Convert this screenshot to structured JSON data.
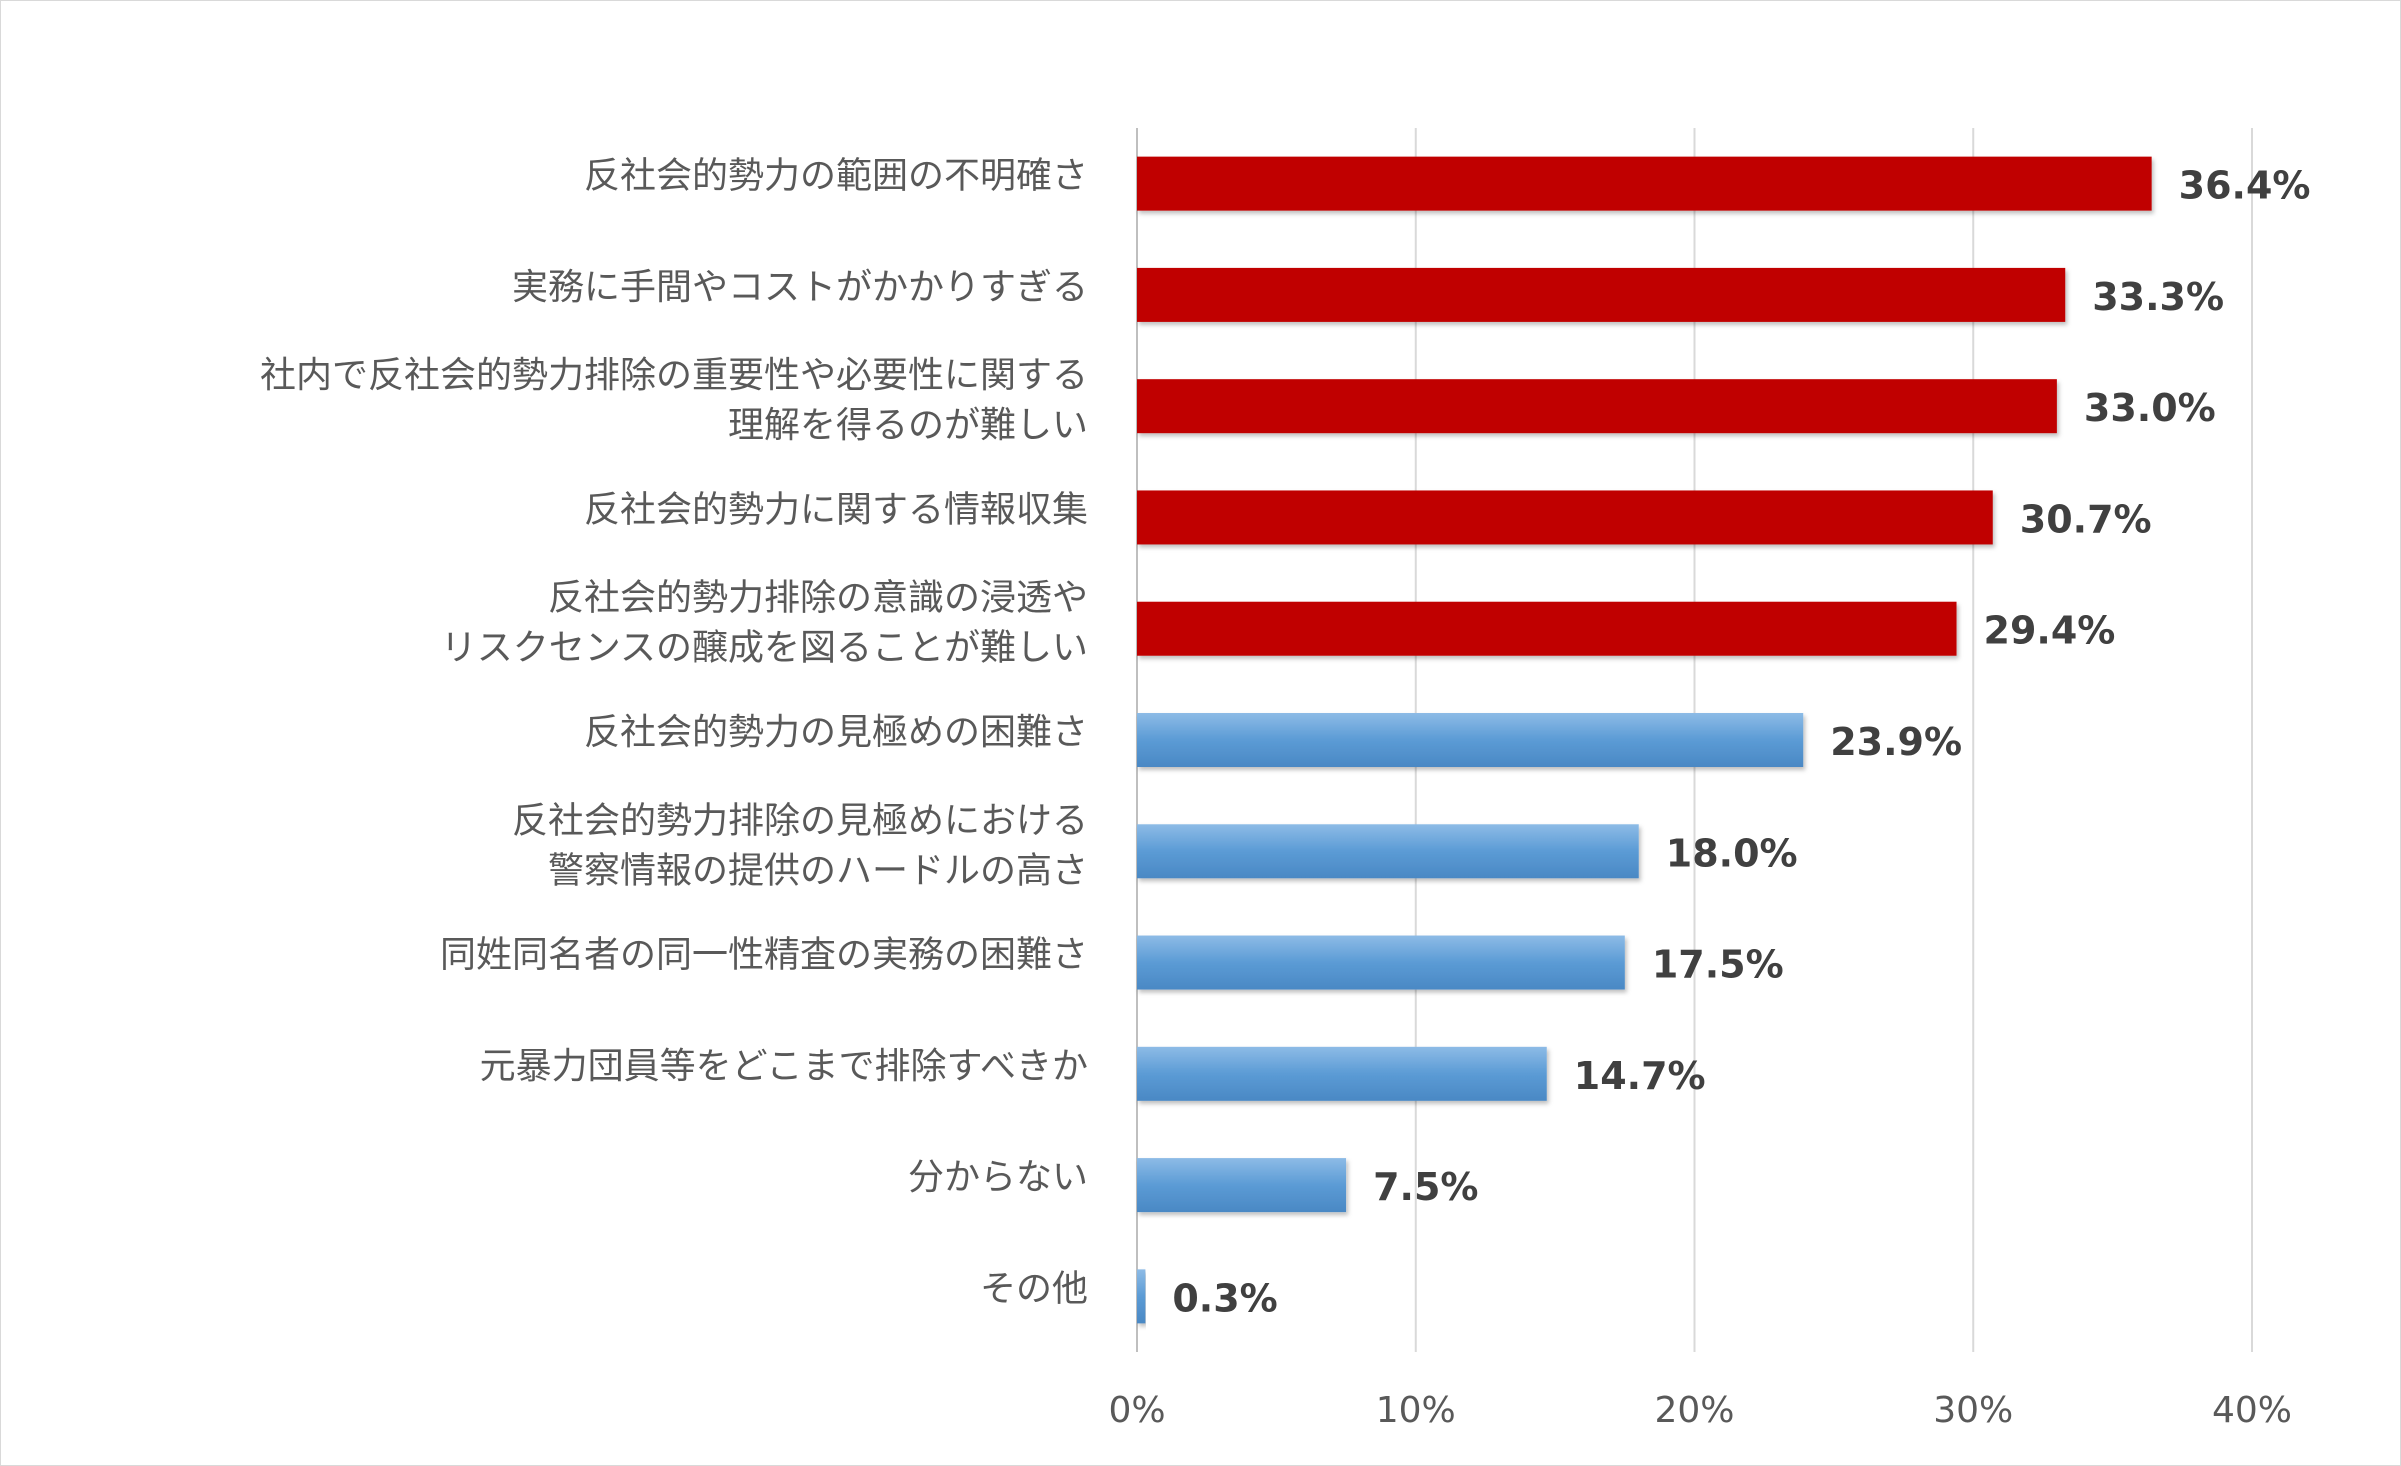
{
  "chart_data": {
    "type": "bar",
    "orientation": "horizontal",
    "categories": [
      "反社会的勢力の範囲の不明確さ",
      "実務に手間やコストがかかりすぎる",
      "社内で反社会的勢力排除の重要性や必要性に関する\n理解を得るのが難しい",
      "反社会的勢力に関する情報収集",
      "反社会的勢力排除の意識の浸透や\nリスクセンスの醸成を図ることが難しい",
      "反社会的勢力の見極めの困難さ",
      "反社会的勢力排除の見極めにおける\n警察情報の提供のハードルの高さ",
      "同姓同名者の同一性精査の実務の困難さ",
      "元暴力団員等をどこまで排除すべきか",
      "分からない",
      "その他"
    ],
    "values": [
      36.4,
      33.3,
      33.0,
      30.7,
      29.4,
      23.9,
      18.0,
      17.5,
      14.7,
      7.5,
      0.3
    ],
    "value_labels": [
      "36.4%",
      "33.3%",
      "33.0%",
      "30.7%",
      "29.4%",
      "23.9%",
      "18.0%",
      "17.5%",
      "14.7%",
      "7.5%",
      "0.3%"
    ],
    "highlight_count": 5,
    "colors": {
      "highlight": "#c00000",
      "normal": "#5b9bd5",
      "normal_light": "#7fb1e0",
      "grid": "#d9d9d9",
      "axis": "#bfbfbf"
    },
    "xlim": [
      0,
      40
    ],
    "xticks": [
      0,
      10,
      20,
      30,
      40
    ],
    "xtick_labels": [
      "0%",
      "10%",
      "20%",
      "30%",
      "40%"
    ],
    "grid": true,
    "title": "",
    "xlabel": "",
    "ylabel": ""
  }
}
